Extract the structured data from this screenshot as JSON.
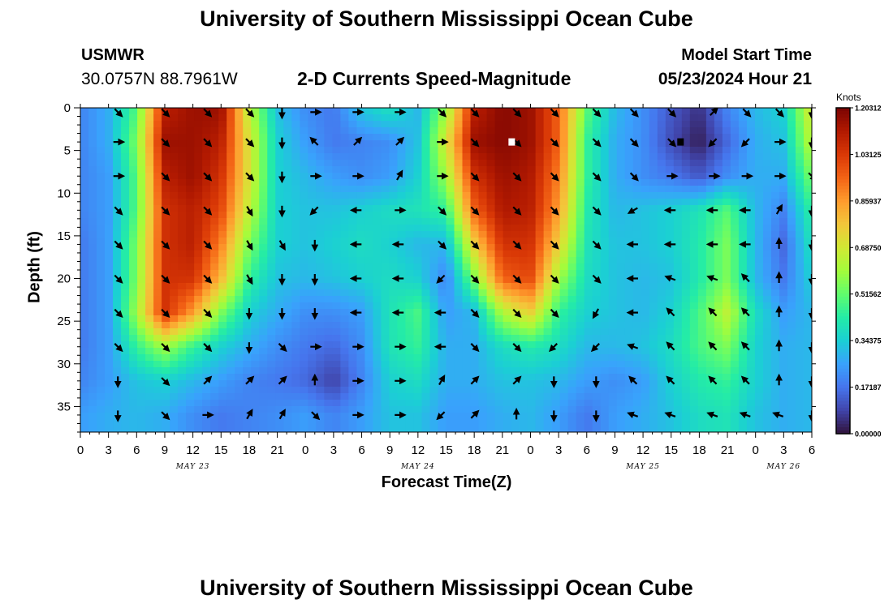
{
  "page": {
    "title": "University of Southern Mississippi Ocean Cube",
    "footer_title": "University of Southern Mississippi Ocean Cube"
  },
  "station": {
    "name": "USMWR",
    "coords": "30.0757N  88.7961W"
  },
  "model": {
    "label": "Model Start Time",
    "start": "05/23/2024 Hour 21"
  },
  "chart_data": {
    "type": "heatmap",
    "title": "2-D Currents Speed-Magnitude",
    "xlabel": "Forecast Time(Z)",
    "ylabel": "Depth (ft)",
    "x_range": [
      0,
      78
    ],
    "y_range": [
      0,
      38
    ],
    "x_tick_labels": [
      "0",
      "3",
      "6",
      "9",
      "12",
      "15",
      "18",
      "21",
      "0",
      "3",
      "6",
      "9",
      "12",
      "15",
      "18",
      "21",
      "0",
      "3",
      "6",
      "9",
      "12",
      "15",
      "18",
      "21",
      "0",
      "3",
      "6"
    ],
    "date_labels": [
      {
        "label": "MAY 23",
        "hour": 12
      },
      {
        "label": "MAY 24",
        "hour": 36
      },
      {
        "label": "MAY 25",
        "hour": 60
      },
      {
        "label": "MAY 26",
        "hour": 75
      }
    ],
    "y_ticks": [
      0,
      5,
      10,
      15,
      20,
      25,
      30,
      35
    ],
    "colorbar": {
      "unit": "Knots",
      "min": 0.0,
      "max": 1.20312,
      "tick_labels": [
        "1.20312",
        "1.03125",
        "0.85937",
        "0.68750",
        "0.51562",
        "0.34375",
        "0.17187",
        "0.00000"
      ],
      "colors": [
        "#30123b",
        "#4145ab",
        "#4675ed",
        "#39a2fc",
        "#1bcfd4",
        "#24eca6",
        "#61fc6c",
        "#a4fc3b",
        "#d1e834",
        "#f3c63a",
        "#fe9b2d",
        "#f36315",
        "#d93806",
        "#b11901",
        "#7a0402"
      ]
    },
    "depths": [
      0.5,
      4,
      8,
      12,
      16,
      20,
      24,
      28,
      32,
      36
    ],
    "grid_hours": [
      0,
      3,
      6,
      9,
      12,
      15,
      18,
      21,
      24,
      27,
      30,
      33,
      36,
      39,
      42,
      45,
      48,
      51,
      54,
      57,
      60,
      63,
      66,
      69,
      72,
      75,
      78
    ],
    "speed_grid": [
      [
        0.2,
        0.28,
        0.5,
        1.1,
        1.15,
        1.15,
        0.65,
        0.32,
        0.22,
        0.18,
        0.32,
        0.38,
        0.3,
        0.6,
        1.1,
        1.18,
        1.15,
        0.95,
        0.5,
        0.3,
        0.22,
        0.12,
        0.05,
        0.2,
        0.3,
        0.35,
        0.7
      ],
      [
        0.2,
        0.28,
        0.55,
        1.15,
        1.15,
        1.1,
        0.7,
        0.35,
        0.25,
        0.18,
        0.2,
        0.22,
        0.32,
        0.7,
        1.15,
        1.18,
        1.15,
        0.95,
        0.45,
        0.28,
        0.22,
        0.1,
        0.02,
        0.15,
        0.28,
        0.32,
        0.65
      ],
      [
        0.2,
        0.25,
        0.5,
        1.1,
        1.15,
        1.05,
        0.7,
        0.35,
        0.3,
        0.25,
        0.22,
        0.25,
        0.35,
        0.6,
        1.05,
        1.15,
        1.12,
        0.9,
        0.45,
        0.28,
        0.22,
        0.18,
        0.12,
        0.22,
        0.28,
        0.28,
        0.55
      ],
      [
        0.2,
        0.25,
        0.5,
        1.05,
        1.1,
        1.0,
        0.65,
        0.35,
        0.32,
        0.32,
        0.35,
        0.38,
        0.4,
        0.45,
        0.95,
        1.12,
        1.1,
        0.85,
        0.42,
        0.3,
        0.32,
        0.35,
        0.4,
        0.5,
        0.3,
        0.2,
        0.45
      ],
      [
        0.18,
        0.25,
        0.55,
        1.05,
        1.1,
        0.9,
        0.55,
        0.35,
        0.32,
        0.35,
        0.38,
        0.35,
        0.3,
        0.3,
        0.75,
        1.05,
        1.05,
        0.75,
        0.4,
        0.32,
        0.32,
        0.35,
        0.42,
        0.55,
        0.3,
        0.15,
        0.4
      ],
      [
        0.18,
        0.25,
        0.55,
        1.05,
        1.05,
        0.8,
        0.45,
        0.32,
        0.3,
        0.32,
        0.35,
        0.38,
        0.35,
        0.2,
        0.55,
        0.95,
        1.0,
        0.6,
        0.38,
        0.32,
        0.3,
        0.32,
        0.42,
        0.55,
        0.3,
        0.18,
        0.35
      ],
      [
        0.18,
        0.25,
        0.6,
        1.05,
        0.85,
        0.55,
        0.35,
        0.28,
        0.22,
        0.22,
        0.25,
        0.4,
        0.48,
        0.25,
        0.3,
        0.62,
        0.75,
        0.45,
        0.35,
        0.32,
        0.3,
        0.35,
        0.48,
        0.65,
        0.38,
        0.25,
        0.3
      ],
      [
        0.18,
        0.25,
        0.45,
        0.6,
        0.45,
        0.35,
        0.28,
        0.22,
        0.18,
        0.15,
        0.22,
        0.4,
        0.45,
        0.28,
        0.28,
        0.38,
        0.42,
        0.38,
        0.3,
        0.3,
        0.32,
        0.38,
        0.48,
        0.55,
        0.35,
        0.28,
        0.3
      ],
      [
        0.2,
        0.25,
        0.32,
        0.35,
        0.3,
        0.25,
        0.2,
        0.18,
        0.15,
        0.08,
        0.2,
        0.35,
        0.38,
        0.28,
        0.28,
        0.32,
        0.32,
        0.3,
        0.25,
        0.22,
        0.25,
        0.35,
        0.42,
        0.45,
        0.35,
        0.28,
        0.3
      ],
      [
        0.25,
        0.28,
        0.3,
        0.28,
        0.22,
        0.18,
        0.2,
        0.22,
        0.25,
        0.2,
        0.25,
        0.32,
        0.32,
        0.25,
        0.25,
        0.28,
        0.3,
        0.25,
        0.18,
        0.25,
        0.28,
        0.32,
        0.38,
        0.4,
        0.32,
        0.28,
        0.3
      ]
    ],
    "arrow_hours": [
      4,
      9,
      13.5,
      18,
      21.5,
      25,
      29.5,
      34,
      38.5,
      42,
      46.5,
      50.5,
      55,
      59,
      63,
      67.5,
      71,
      74.5,
      78
    ],
    "arrow_depths": [
      0.5,
      4,
      8,
      12,
      16,
      20,
      24,
      28,
      32,
      36
    ],
    "arrow_angles": [
      [
        45,
        45,
        45,
        45,
        90,
        0,
        0,
        0,
        45,
        45,
        45,
        45,
        45,
        45,
        45,
        -45,
        45,
        45,
        90
      ],
      [
        0,
        45,
        45,
        45,
        90,
        225,
        315,
        315,
        0,
        45,
        45,
        45,
        45,
        45,
        45,
        135,
        135,
        0,
        90
      ],
      [
        0,
        45,
        45,
        45,
        90,
        0,
        0,
        300,
        0,
        45,
        45,
        45,
        45,
        45,
        0,
        0,
        0,
        0,
        45
      ],
      [
        45,
        45,
        45,
        60,
        90,
        135,
        180,
        0,
        45,
        45,
        45,
        45,
        45,
        150,
        180,
        180,
        180,
        300,
        90
      ],
      [
        45,
        45,
        45,
        60,
        60,
        90,
        180,
        180,
        45,
        45,
        45,
        45,
        45,
        180,
        180,
        180,
        180,
        270,
        90
      ],
      [
        45,
        45,
        45,
        60,
        90,
        90,
        180,
        180,
        135,
        45,
        45,
        45,
        45,
        180,
        200,
        200,
        225,
        270,
        90
      ],
      [
        45,
        45,
        45,
        90,
        90,
        90,
        180,
        180,
        180,
        45,
        45,
        45,
        120,
        180,
        225,
        225,
        225,
        270,
        90
      ],
      [
        45,
        45,
        45,
        90,
        45,
        0,
        0,
        0,
        180,
        45,
        45,
        135,
        135,
        200,
        225,
        225,
        225,
        270,
        90
      ],
      [
        90,
        45,
        315,
        315,
        315,
        270,
        0,
        0,
        300,
        315,
        315,
        90,
        90,
        225,
        225,
        225,
        225,
        270,
        90
      ],
      [
        90,
        45,
        0,
        300,
        300,
        45,
        0,
        0,
        135,
        315,
        270,
        90,
        90,
        200,
        200,
        200,
        200,
        200,
        90
      ]
    ],
    "markers": [
      {
        "hour": 46,
        "depth": 4,
        "color": "#ffffff"
      },
      {
        "hour": 64,
        "depth": 4,
        "color": "#000000"
      }
    ]
  }
}
